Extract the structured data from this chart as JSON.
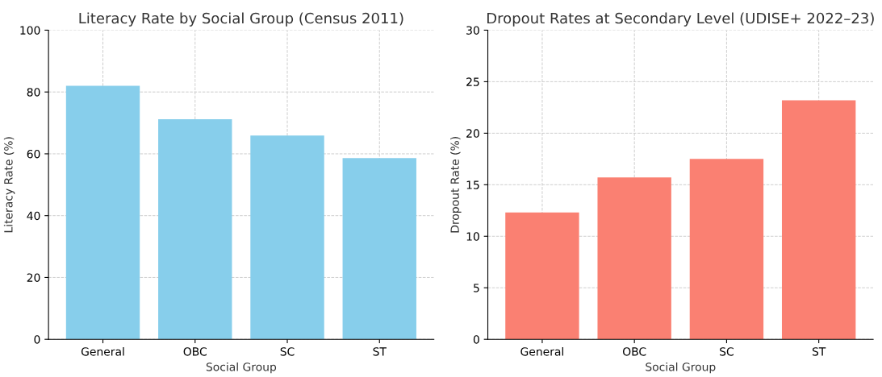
{
  "chart_data": [
    {
      "type": "bar",
      "title": "Literacy Rate by Social Group (Census 2011)",
      "xlabel": "Social Group",
      "ylabel": "Literacy Rate (%)",
      "categories": [
        "General",
        "OBC",
        "SC",
        "ST"
      ],
      "values": [
        82.0,
        71.2,
        65.9,
        58.6
      ],
      "color": "#87ceeb",
      "ylim": [
        0,
        100
      ],
      "yticks": [
        0,
        20,
        40,
        60,
        80,
        100
      ],
      "grid": true
    },
    {
      "type": "bar",
      "title": "Dropout Rates at Secondary Level (UDISE+ 2022–23)",
      "xlabel": "Social Group",
      "ylabel": "Dropout Rate (%)",
      "categories": [
        "General",
        "OBC",
        "SC",
        "ST"
      ],
      "values": [
        12.3,
        15.7,
        17.5,
        23.2
      ],
      "color": "#fa8072",
      "ylim": [
        0,
        30
      ],
      "yticks": [
        0,
        5,
        10,
        15,
        20,
        25,
        30
      ],
      "grid": true
    }
  ]
}
